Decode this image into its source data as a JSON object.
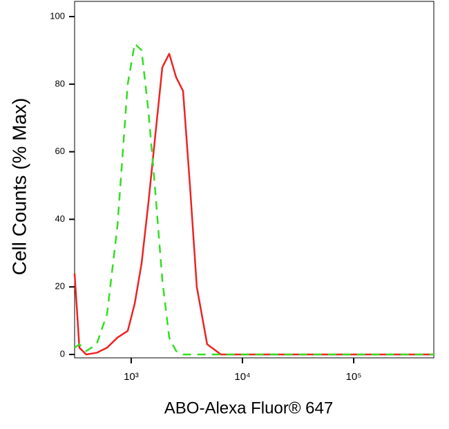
{
  "chart_data": {
    "type": "line",
    "xlabel": "ABO-Alexa Fluor® 647",
    "ylabel": "Cell Counts (% Max)",
    "x": [
      310,
      342,
      394,
      489,
      607,
      752,
      931,
      1075,
      1240,
      1430,
      1650,
      1905,
      2197,
      2535,
      2925,
      3375,
      3890,
      4820,
      6415,
      20140,
      525000
    ],
    "series": [
      {
        "color": "#ee2222",
        "dash": "solid",
        "values": [
          24,
          2,
          0,
          0.5,
          2,
          5,
          7,
          15,
          27,
          45,
          65,
          85,
          89,
          82,
          78,
          50,
          20,
          3,
          0,
          0,
          0
        ]
      },
      {
        "color": "#33dd22",
        "dash": "dashed",
        "values": [
          2,
          3,
          1,
          3,
          12,
          38,
          80,
          92,
          90,
          72,
          48,
          22,
          5,
          1,
          0,
          0,
          0,
          0,
          0,
          0,
          0
        ]
      }
    ],
    "xscale": "log",
    "xlim": [
      310,
      525000
    ],
    "xticks": [
      {
        "value": 1000,
        "label": "10³"
      },
      {
        "value": 10000,
        "label": "10⁴"
      },
      {
        "value": 100000,
        "label": "10⁵"
      }
    ],
    "ylim": [
      -1,
      104.5
    ],
    "yticks": [
      0,
      20,
      40,
      60,
      80,
      100
    ],
    "grid": false
  }
}
